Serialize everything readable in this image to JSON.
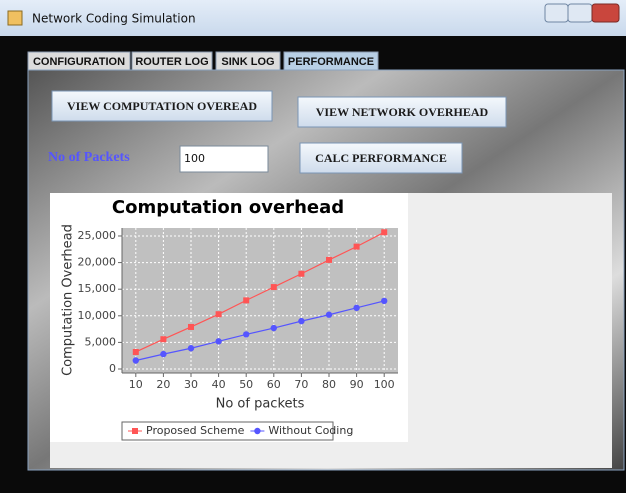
{
  "window": {
    "title": "Network Coding Simulation"
  },
  "tabs": [
    "CONFIGURATION",
    "ROUTER LOG",
    "SINK LOG",
    "PERFORMANCE"
  ],
  "buttons": [
    "VIEW COMPUTATION OVEREAD",
    "VIEW NETWORK OVERHEAD",
    "CALC PERFORMANCE"
  ],
  "form": {
    "label": "No of Packets",
    "input": "100"
  },
  "chart_data": {
    "type": "line",
    "title": "Computation overhead",
    "x_label": "No of packets",
    "y_label": "Computation Overhead",
    "x": [
      10,
      20,
      30,
      40,
      50,
      60,
      70,
      80,
      90,
      100
    ],
    "series": [
      {
        "name": "Proposed Scheme",
        "color": "#ff5555",
        "marker": "square",
        "values": [
          3200,
          5600,
          7900,
          10300,
          12900,
          15400,
          17900,
          20500,
          23000,
          25700
        ]
      },
      {
        "name": "Without Coding",
        "color": "#5555ff",
        "marker": "circle",
        "values": [
          1600,
          2800,
          3900,
          5200,
          6500,
          7700,
          9000,
          10200,
          11500,
          12800
        ]
      }
    ],
    "xlim": [
      5,
      105
    ],
    "ylim": [
      -750,
      26500
    ],
    "xticks": [
      10,
      20,
      30,
      40,
      50,
      60,
      70,
      80,
      90,
      100
    ],
    "yticks": [
      0,
      {
        "value": 5000,
        "label": "5,000"
      },
      {
        "value": 10000,
        "label": "10,000"
      },
      {
        "value": 15000,
        "label": "15,000"
      },
      {
        "value": 20000,
        "label": "20,000"
      },
      {
        "value": 25000,
        "label": "25,000"
      }
    ],
    "grid": true,
    "legend": "bottom"
  }
}
